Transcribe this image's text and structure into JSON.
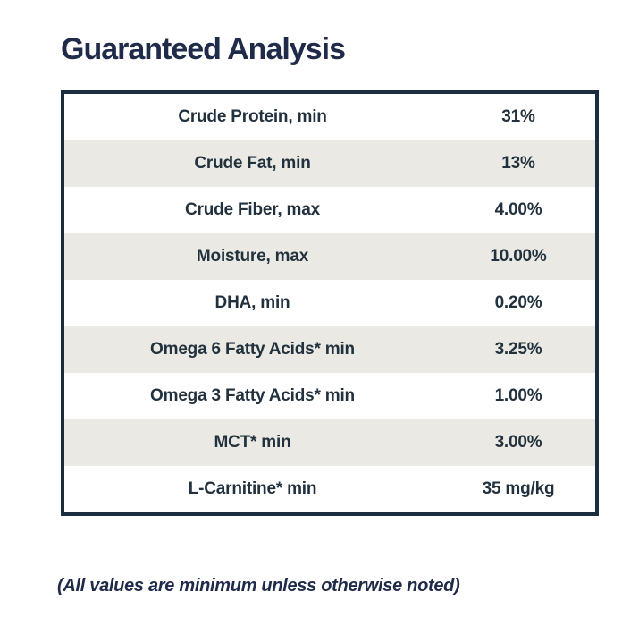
{
  "page": {
    "title": "Guaranteed Analysis",
    "footnote": "(All values are minimum unless otherwise noted)"
  },
  "table": {
    "rows": [
      {
        "label": "Crude Protein, min",
        "value": "31%"
      },
      {
        "label": "Crude Fat, min",
        "value": "13%"
      },
      {
        "label": "Crude Fiber, max",
        "value": "4.00%"
      },
      {
        "label": "Moisture, max",
        "value": "10.00%"
      },
      {
        "label": "DHA, min",
        "value": "0.20%"
      },
      {
        "label": "Omega 6 Fatty Acids* min",
        "value": "3.25%"
      },
      {
        "label": "Omega 3 Fatty Acids* min",
        "value": "1.00%"
      },
      {
        "label": "MCT* min",
        "value": "3.00%"
      },
      {
        "label": "L-Carnitine* min",
        "value": "35 mg/kg"
      }
    ]
  },
  "colors": {
    "title_text": "#1f2b49",
    "table_text": "#22313e",
    "table_border": "#1a2e3f",
    "row_bg": "#ffffff",
    "row_alt_bg": "#ebe9e3",
    "column_divider": "#d6d4ce"
  }
}
